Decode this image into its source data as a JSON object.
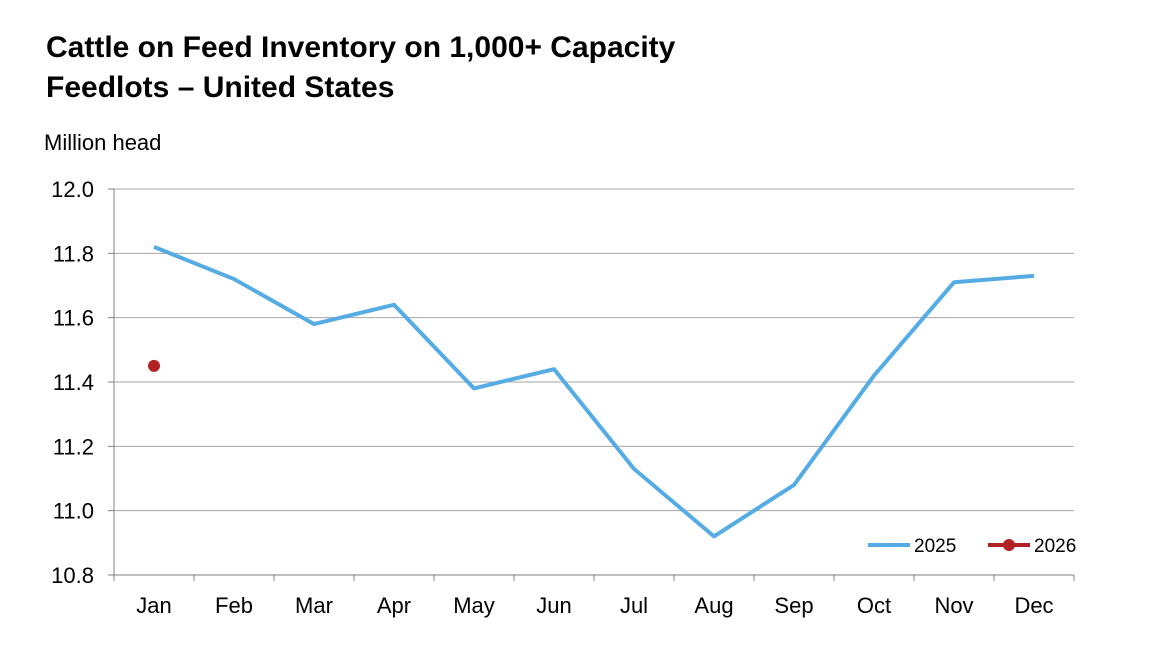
{
  "chart_data": {
    "type": "line",
    "title_lines": [
      "Cattle on Feed Inventory on 1,000+ Capacity",
      "Feedlots – United States"
    ],
    "ylabel": "Million head",
    "xlabel": "",
    "categories": [
      "Jan",
      "Feb",
      "Mar",
      "Apr",
      "May",
      "Jun",
      "Jul",
      "Aug",
      "Sep",
      "Oct",
      "Nov",
      "Dec"
    ],
    "ylim": [
      10.8,
      12.0
    ],
    "yticks": [
      "10.8",
      "11.0",
      "11.2",
      "11.4",
      "11.6",
      "11.8",
      "12.0"
    ],
    "grid": true,
    "legend_position": "bottom-right",
    "series": [
      {
        "name": "2025",
        "color": "#55ACE4",
        "values": [
          11.82,
          11.72,
          11.58,
          11.64,
          11.38,
          11.44,
          11.13,
          10.92,
          11.08,
          11.42,
          11.71,
          11.73
        ]
      },
      {
        "name": "2026",
        "color": "#B22222",
        "values": [
          11.45,
          null,
          null,
          null,
          null,
          null,
          null,
          null,
          null,
          null,
          null,
          null
        ]
      }
    ]
  }
}
